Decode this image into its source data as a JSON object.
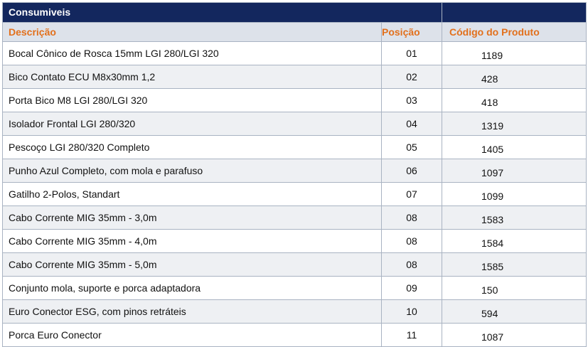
{
  "table": {
    "title": "Consumiveis",
    "headers": {
      "description": "Descrição",
      "position": "Posição",
      "code": "Código do Produto"
    },
    "rows": [
      {
        "description": "Bocal Cônico de Rosca 15mm LGI 280/LGI 320",
        "position": "01",
        "code": "1189"
      },
      {
        "description": "Bico Contato ECU M8x30mm 1,2",
        "position": "02",
        "code": "428"
      },
      {
        "description": "Porta Bico M8 LGI 280/LGI 320",
        "position": "03",
        "code": "418"
      },
      {
        "description": "Isolador Frontal LGI 280/320",
        "position": "04",
        "code": "1319"
      },
      {
        "description": "Pescoço LGI 280/320 Completo",
        "position": "05",
        "code": "1405"
      },
      {
        "description": "Punho Azul Completo, com mola e parafuso",
        "position": "06",
        "code": "1097"
      },
      {
        "description": "Gatilho 2-Polos, Standart",
        "position": "07",
        "code": "1099"
      },
      {
        "description": "Cabo Corrente MIG 35mm - 3,0m",
        "position": "08",
        "code": "1583"
      },
      {
        "description": "Cabo Corrente MIG 35mm - 4,0m",
        "position": "08",
        "code": "1584"
      },
      {
        "description": "Cabo Corrente MIG 35mm - 5,0m",
        "position": "08",
        "code": "1585"
      },
      {
        "description": "Conjunto mola, suporte e porca adaptadora",
        "position": "09",
        "code": "150"
      },
      {
        "description": "Euro Conector ESG, com pinos retráteis",
        "position": "10",
        "code": "594"
      },
      {
        "description": "Porca Euro Conector",
        "position": "11",
        "code": "1087"
      }
    ]
  }
}
